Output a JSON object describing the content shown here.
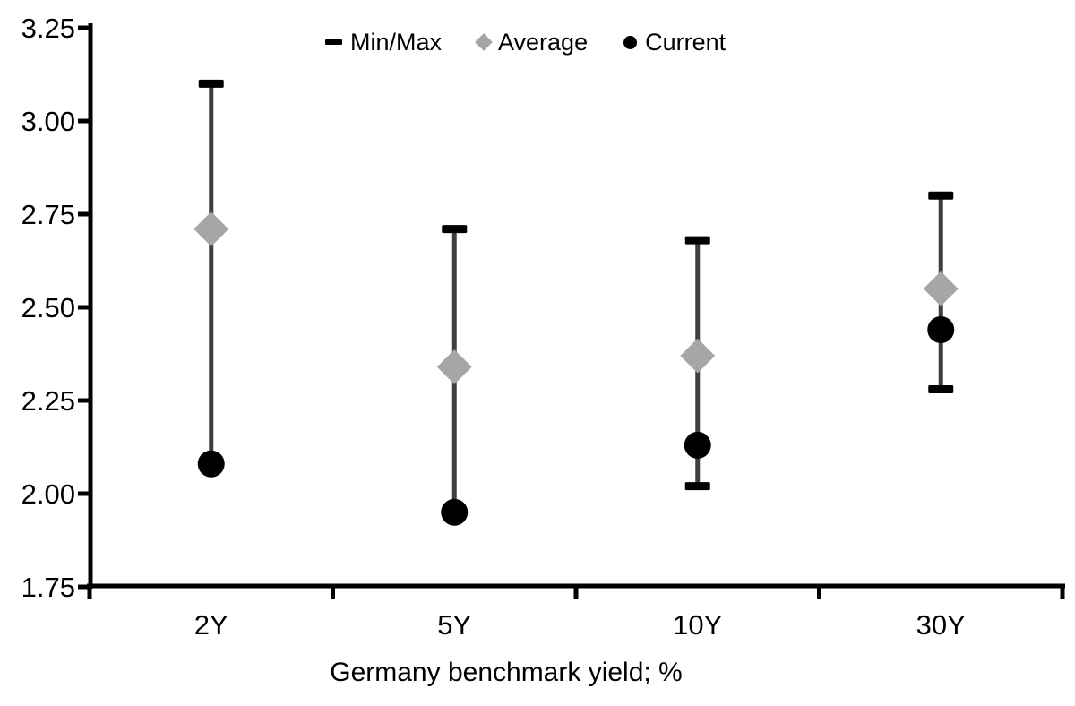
{
  "chart_data": {
    "type": "scatter",
    "variant": "min-max-range-dot-plot",
    "title": "",
    "xlabel": "Germany benchmark yield; %",
    "ylabel": "",
    "categories": [
      "2Y",
      "5Y",
      "10Y",
      "30Y"
    ],
    "ylim": [
      1.75,
      3.25
    ],
    "ytick_step": 0.25,
    "yticks": [
      "1.75",
      "2.00",
      "2.25",
      "2.50",
      "2.75",
      "3.00",
      "3.25"
    ],
    "grid": false,
    "legend_position": "top-center",
    "series": [
      {
        "name": "Min/Max",
        "role": "range",
        "marker": "dash",
        "color": "#000000",
        "line_color": "#3f3f3f",
        "min": [
          2.08,
          1.95,
          2.02,
          2.28
        ],
        "max": [
          3.1,
          2.71,
          2.68,
          2.8
        ]
      },
      {
        "name": "Average",
        "role": "point",
        "marker": "diamond",
        "color": "#a6a6a6",
        "values": [
          2.71,
          2.34,
          2.37,
          2.55
        ]
      },
      {
        "name": "Current",
        "role": "point",
        "marker": "circle",
        "color": "#000000",
        "values": [
          2.08,
          1.95,
          2.13,
          2.44
        ]
      }
    ],
    "colors": {
      "axis": "#000000",
      "text": "#000000",
      "range_line": "#3f3f3f",
      "average": "#a6a6a6",
      "current": "#000000"
    }
  }
}
